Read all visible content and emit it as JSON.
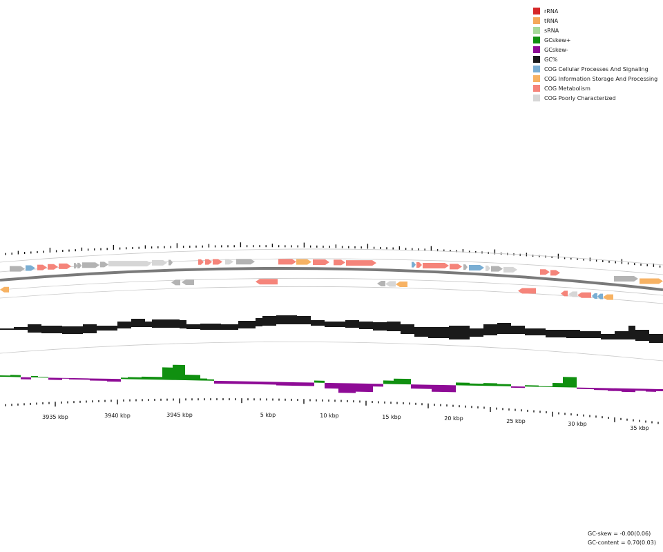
{
  "legend": [
    {
      "label": "rRNA",
      "color": "#d62728"
    },
    {
      "label": "tRNA",
      "color": "#f5a85a"
    },
    {
      "label": "sRNA",
      "color": "#a6d99a"
    },
    {
      "label": "GCskew+",
      "color": "#109010"
    },
    {
      "label": "GCskew-",
      "color": "#8e0b96"
    },
    {
      "label": "GC%",
      "color": "#1a1a1a"
    },
    {
      "label": "COG Cellular Processes And Signaling",
      "color": "#7aaed3"
    },
    {
      "label": "COG Information Storage And Processing",
      "color": "#f7b263"
    },
    {
      "label": "COG Metabolism",
      "color": "#f5847a"
    },
    {
      "label": "COG Poorly Characterized",
      "color": "#d6d6d6"
    }
  ],
  "axis_labels": [
    "3935 kbp",
    "3940 kbp",
    "3945 kbp",
    "5 kbp",
    "10 kbp",
    "15 kbp",
    "20 kbp",
    "25 kbp",
    "30 kbp",
    "35 kbp"
  ],
  "stats": {
    "gc_skew": "GC-skew = -0.00(0.06)",
    "gc_content": "GC-content = 0.70(0.03)"
  },
  "colors": {
    "metabolism": "#f5847a",
    "info": "#f7b263",
    "cellular": "#7aaed3",
    "poorly": "#d6d6d6",
    "general": "#b3b3b3",
    "gc": "#1a1a1a",
    "skew_pos": "#109010",
    "skew_neg": "#8e0b96",
    "backbone": "#7a7a7a",
    "ring": "#c8c8c8"
  }
}
